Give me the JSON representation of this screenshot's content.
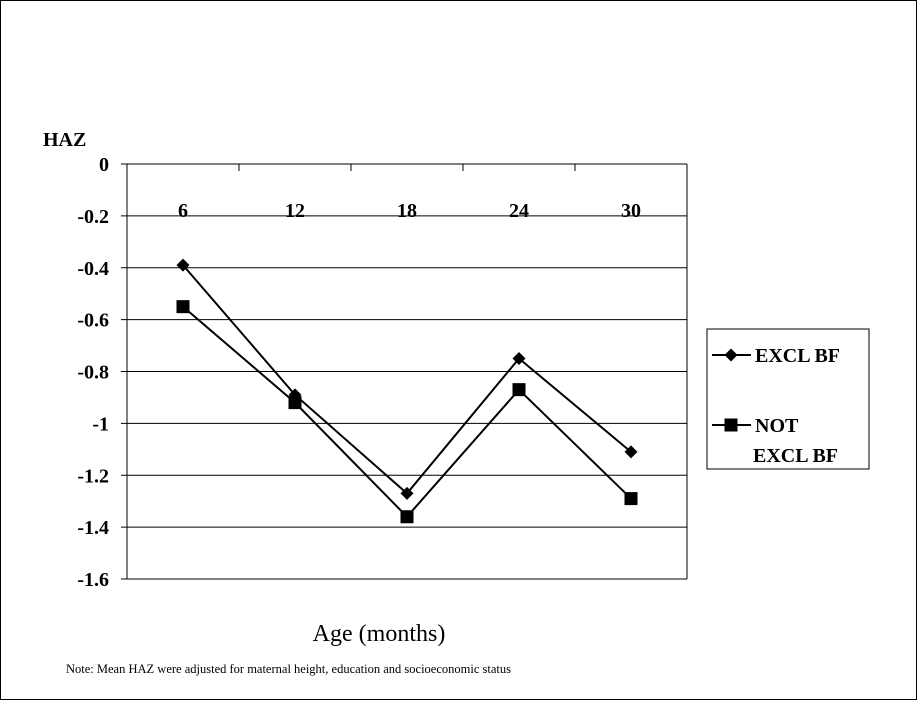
{
  "chart_data": {
    "type": "line",
    "ylabel": "HAZ",
    "xlabel": "Age (months)",
    "note": "Note: Mean HAZ were adjusted for maternal height, education and socioeconomic status",
    "categories": [
      "6",
      "12",
      "18",
      "24",
      "30"
    ],
    "ylim": [
      -1.6,
      0
    ],
    "yticks": [
      0,
      -0.2,
      -0.4,
      -0.6,
      -0.8,
      -1,
      -1.2,
      -1.4,
      -1.6
    ],
    "ytick_labels": [
      "0",
      "-0.2",
      "-0.4",
      "-0.6",
      "-0.8",
      "-1",
      "-1.2",
      "-1.4",
      "-1.6"
    ],
    "grid": true,
    "legend_position": "right",
    "series": [
      {
        "name": "EXCL BF",
        "legend_lines": [
          "EXCL BF"
        ],
        "marker": "diamond",
        "color": "#000000",
        "values": [
          -0.39,
          -0.89,
          -1.27,
          -0.75,
          -1.11
        ]
      },
      {
        "name": "NOT EXCL BF",
        "legend_lines": [
          "NOT",
          "EXCL BF"
        ],
        "marker": "square",
        "color": "#000000",
        "values": [
          -0.55,
          -0.92,
          -1.36,
          -0.87,
          -1.29
        ]
      }
    ]
  }
}
